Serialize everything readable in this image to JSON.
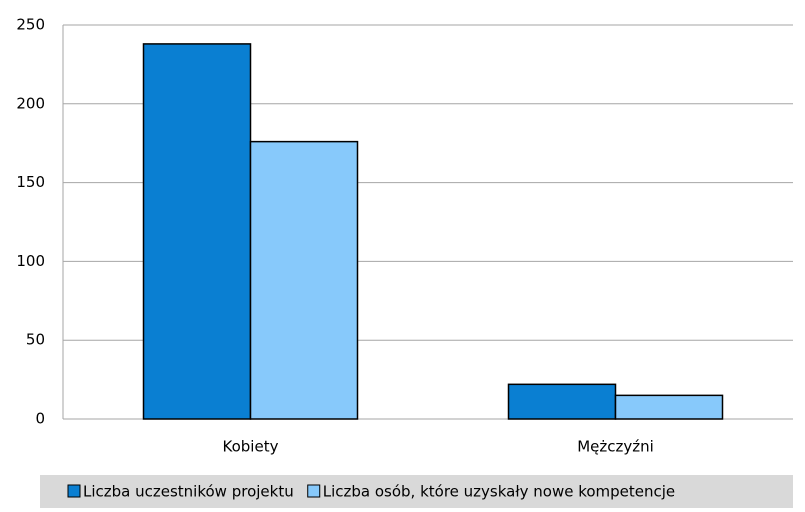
{
  "chart_data": {
    "type": "bar",
    "categories": [
      "Kobiety",
      "Mężczyźni"
    ],
    "series": [
      {
        "name": "Liczba uczestników projektu",
        "color": "#0a7fd2",
        "values": [
          238,
          22
        ]
      },
      {
        "name": "Liczba osób, które uzyskały nowe kompetencje",
        "color": "#87c9fb",
        "values": [
          176,
          15
        ]
      }
    ],
    "ylim": [
      0,
      250
    ],
    "yticks": [
      0,
      50,
      100,
      150,
      200,
      250
    ],
    "grid": true,
    "legend": "bottom"
  }
}
